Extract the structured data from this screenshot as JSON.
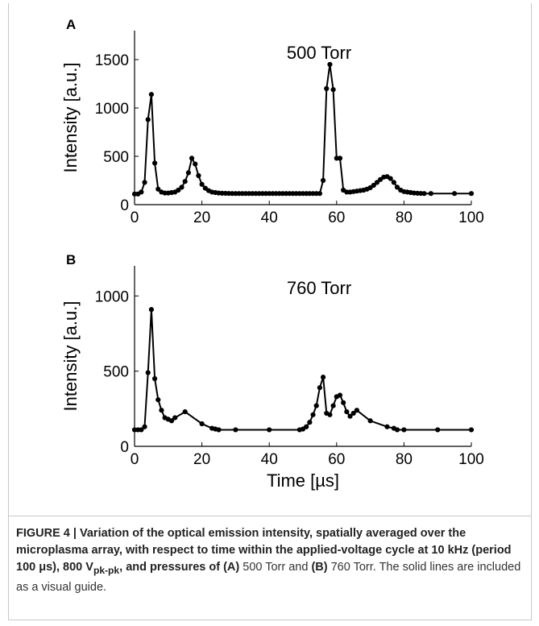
{
  "chart_data": [
    {
      "type": "line",
      "panel_label": "A",
      "annotation": "500 Torr",
      "xlabel": "",
      "ylabel": "Intensity [a.u.]",
      "xlim": [
        0,
        100
      ],
      "ylim": [
        0,
        1800
      ],
      "xticks": [
        0,
        20,
        40,
        60,
        80,
        100
      ],
      "yticks": [
        0,
        500,
        1000,
        1500
      ],
      "x": [
        0,
        1,
        2,
        3,
        4,
        5,
        6,
        7,
        8,
        9,
        10,
        11,
        12,
        13,
        14,
        15,
        16,
        17,
        18,
        19,
        20,
        21,
        22,
        23,
        24,
        25,
        26,
        27,
        28,
        29,
        30,
        31,
        32,
        33,
        34,
        35,
        36,
        37,
        38,
        39,
        40,
        41,
        42,
        43,
        44,
        45,
        46,
        47,
        48,
        49,
        50,
        51,
        52,
        53,
        54,
        55,
        56,
        57,
        58,
        59,
        60,
        61,
        62,
        63,
        64,
        65,
        66,
        67,
        68,
        69,
        70,
        71,
        72,
        73,
        74,
        75,
        76,
        77,
        78,
        79,
        80,
        81,
        82,
        83,
        84,
        85,
        86,
        88,
        95,
        100
      ],
      "y": [
        110,
        110,
        130,
        230,
        880,
        1140,
        430,
        160,
        130,
        120,
        120,
        125,
        130,
        150,
        180,
        240,
        330,
        480,
        420,
        300,
        210,
        170,
        145,
        130,
        125,
        120,
        118,
        117,
        116,
        115,
        115,
        115,
        115,
        115,
        115,
        115,
        115,
        115,
        115,
        115,
        115,
        115,
        115,
        115,
        115,
        115,
        115,
        115,
        115,
        115,
        115,
        115,
        115,
        115,
        115,
        115,
        250,
        1200,
        1450,
        1190,
        480,
        480,
        150,
        130,
        130,
        135,
        140,
        145,
        150,
        160,
        175,
        200,
        230,
        260,
        285,
        290,
        270,
        230,
        180,
        150,
        135,
        130,
        125,
        120,
        118,
        116,
        115,
        115,
        115,
        115
      ]
    },
    {
      "type": "line",
      "panel_label": "B",
      "annotation": "760 Torr",
      "xlabel": "Time [µs]",
      "ylabel": "Intensity [a.u.]",
      "xlim": [
        0,
        100
      ],
      "ylim": [
        0,
        1200
      ],
      "xticks": [
        0,
        20,
        40,
        60,
        80,
        100
      ],
      "yticks": [
        0,
        500,
        1000
      ],
      "x": [
        0,
        1,
        2,
        3,
        4,
        5,
        6,
        7,
        8,
        9,
        10,
        11,
        12,
        15,
        20,
        23,
        24,
        25,
        30,
        40,
        49,
        50,
        51,
        52,
        53,
        54,
        55,
        56,
        57,
        58,
        59,
        60,
        61,
        62,
        63,
        64,
        65,
        66,
        70,
        75,
        77,
        78,
        80,
        90,
        100
      ],
      "y": [
        110,
        110,
        110,
        130,
        490,
        910,
        450,
        310,
        240,
        190,
        180,
        170,
        190,
        230,
        150,
        120,
        115,
        110,
        110,
        110,
        110,
        115,
        130,
        160,
        210,
        270,
        390,
        460,
        220,
        210,
        270,
        330,
        340,
        290,
        230,
        200,
        220,
        240,
        170,
        130,
        120,
        110,
        110,
        110,
        110
      ]
    }
  ],
  "caption": {
    "label": "FIGURE 4 | ",
    "bold_parts": [
      "Variation of the optical emission intensity, spatially averaged over the microplasma array, with respect to time within the applied-voltage cycle at 10 kHz (period 100 μs), 800 V",
      "pk-pk",
      ", and pressures of ",
      "(A)",
      " 500 Torr and ",
      "(B)",
      " 760 Torr."
    ],
    "plain": " The solid lines are included as a visual guide."
  }
}
